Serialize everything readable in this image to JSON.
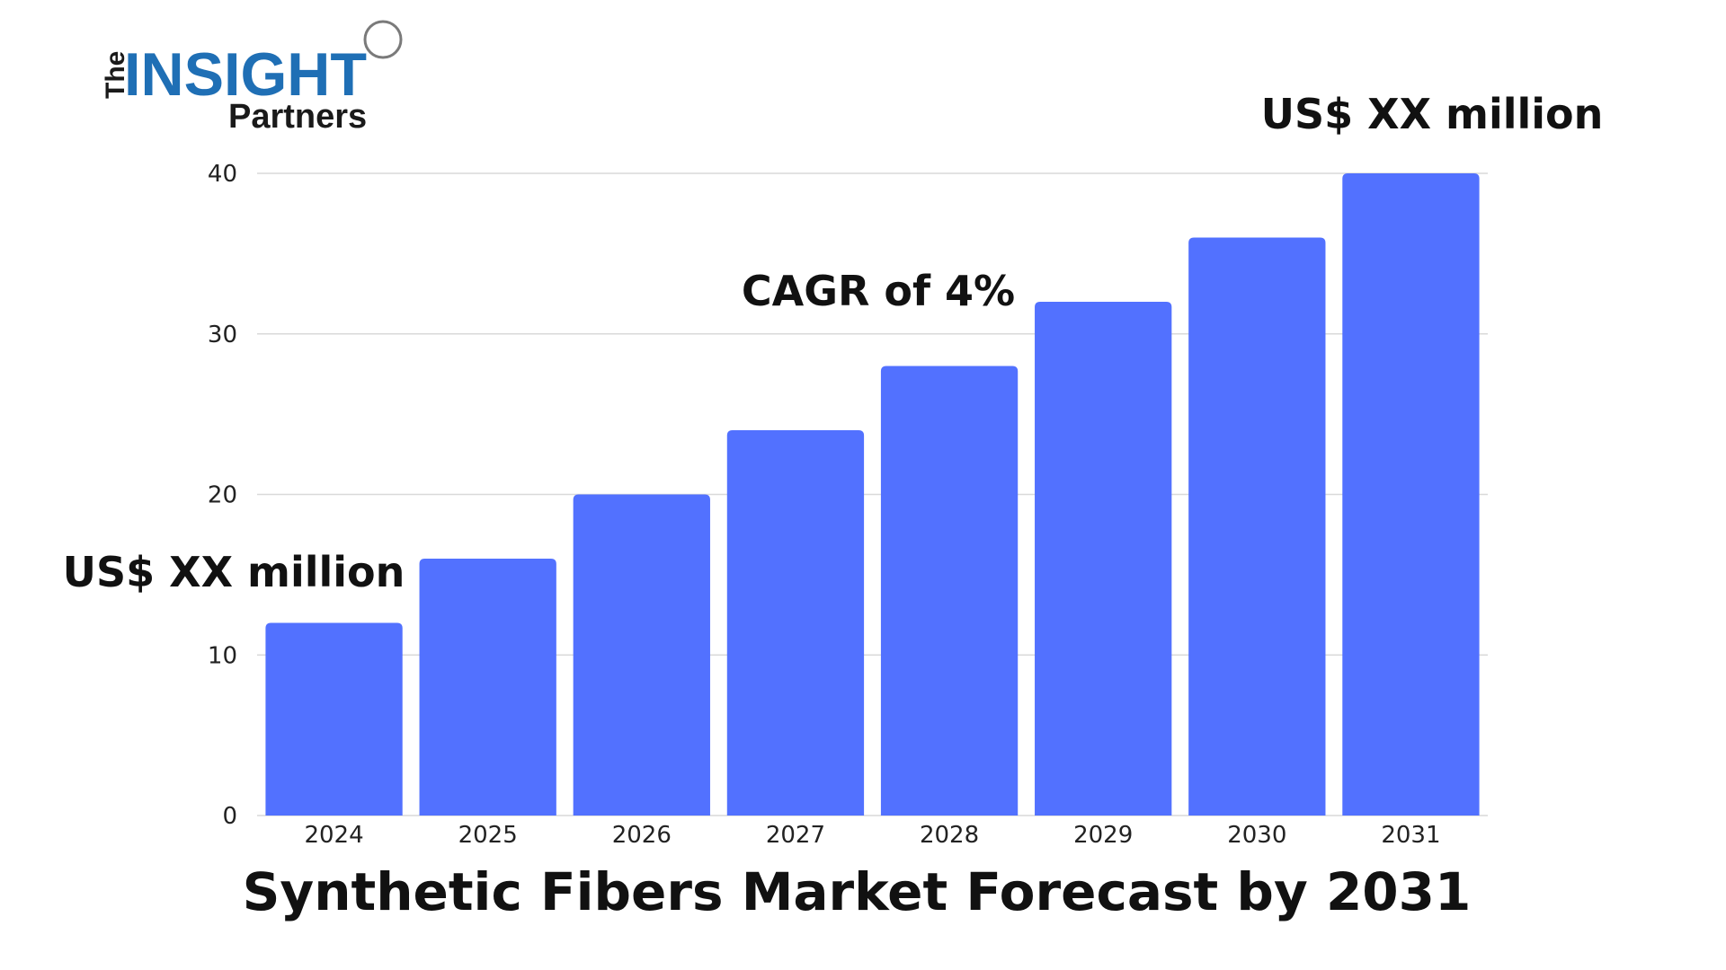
{
  "logo": {
    "word_the": "The",
    "word_insight": "INSIGHT",
    "word_partners": "Partners"
  },
  "colors": {
    "bar": "#5271ff",
    "grid": "#d9d9d9",
    "logo_dark": "#1a1a1a",
    "logo_blue": "#1f6fb5"
  },
  "chart_data": {
    "type": "bar",
    "title": "Synthetic Fibers Market Forecast by 2031",
    "xlabel": "",
    "ylabel": "",
    "categories": [
      "2024",
      "2025",
      "2026",
      "2027",
      "2028",
      "2029",
      "2030",
      "2031"
    ],
    "values": [
      12,
      16,
      20,
      24,
      28,
      32,
      36,
      40
    ],
    "ylim": [
      0,
      40
    ],
    "yticks": [
      0,
      10,
      20,
      30,
      40
    ],
    "grid": true,
    "annotations": {
      "start_value": "US$ XX million",
      "cagr": "CAGR of 4%",
      "end_value": "US$ XX million"
    }
  }
}
